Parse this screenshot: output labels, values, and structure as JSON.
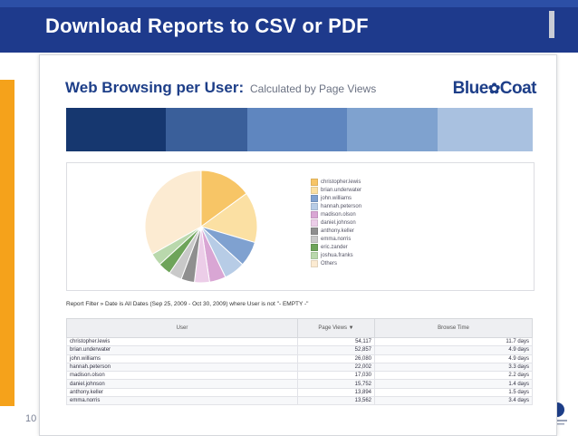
{
  "slide": {
    "title": "Download Reports to CSV or PDF",
    "slide_number": "10"
  },
  "report": {
    "title": "Web Browsing per User:",
    "subtitle": "Calculated by Page Views",
    "brand": "Blue",
    "brand_end": "Coat",
    "filter_text": "Report Filter » Date is All Dates (Sep 25, 2009 - Oct 30, 2009) where User is not \"- EMPTY -\"",
    "columns": [
      "User",
      "Page Views",
      "Browse Time"
    ],
    "sort_indicator": "▼",
    "rows": [
      {
        "user": "christopher.lewis",
        "views": "54,117",
        "time": "11.7 days"
      },
      {
        "user": "brian.underwater",
        "views": "52,857",
        "time": "4.9 days"
      },
      {
        "user": "john.williams",
        "views": "26,080",
        "time": "4.9 days"
      },
      {
        "user": "hannah.peterson",
        "views": "22,002",
        "time": "3.3 days"
      },
      {
        "user": "madison.olson",
        "views": "17,030",
        "time": "2.2 days"
      },
      {
        "user": "daniel.johnson",
        "views": "15,752",
        "time": "1.4 days"
      },
      {
        "user": "anthony.keller",
        "views": "13,894",
        "time": "1.5 days"
      },
      {
        "user": "emma.norris",
        "views": "13,562",
        "time": "3.4 days"
      }
    ]
  },
  "chart_data": {
    "type": "pie",
    "categories": [
      "christopher.lewis",
      "brian.underwater",
      "john.williams",
      "hannah.peterson",
      "madison.olson",
      "daniel.johnson",
      "anthony.keller",
      "emma.norris",
      "eric.zander",
      "joshua.franks",
      "Others"
    ],
    "values": [
      54117,
      52857,
      26080,
      22002,
      17030,
      15752,
      13894,
      13562,
      13436,
      13000,
      120000
    ],
    "colors": [
      "#f7c566",
      "#fbe0a3",
      "#7fa1d0",
      "#b7cce6",
      "#d9a6d4",
      "#eccde8",
      "#8f8f8f",
      "#c9c9c9",
      "#6ea45a",
      "#b9d8ac",
      "#fcebd2"
    ],
    "legend": "right"
  }
}
